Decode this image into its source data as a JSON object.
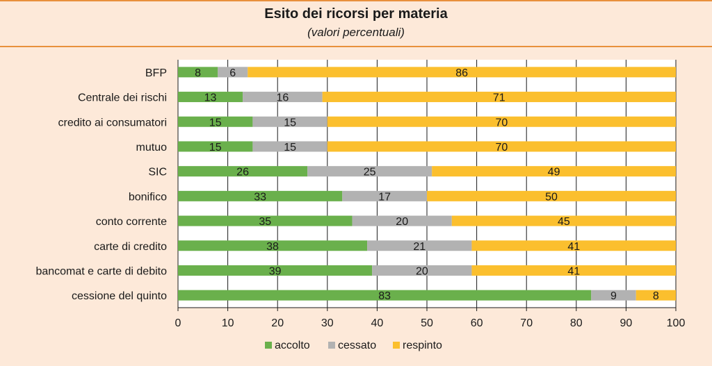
{
  "chart_data": {
    "type": "bar",
    "orientation": "horizontal",
    "stacked": true,
    "title": "Esito dei ricorsi per materia",
    "subtitle": "(valori percentuali)",
    "categories": [
      "BFP",
      "Centrale dei rischi",
      "credito ai consumatori",
      "mutuo",
      "SIC",
      "bonifico",
      "conto corrente",
      "carte di credito",
      "bancomat e carte di debito",
      "cessione del quinto"
    ],
    "series": [
      {
        "name": "accolto",
        "color": "#6ab04c",
        "values": [
          8,
          13,
          15,
          15,
          26,
          33,
          35,
          38,
          39,
          83
        ]
      },
      {
        "name": "cessato",
        "color": "#b2b2b2",
        "values": [
          6,
          16,
          15,
          15,
          25,
          17,
          20,
          21,
          20,
          9
        ]
      },
      {
        "name": "respinto",
        "color": "#fbbf2e",
        "values": [
          86,
          71,
          70,
          70,
          49,
          50,
          45,
          41,
          41,
          8
        ]
      }
    ],
    "xlim": [
      0,
      100
    ],
    "xticks": [
      0,
      10,
      20,
      30,
      40,
      50,
      60,
      70,
      80,
      90,
      100
    ],
    "grid": true,
    "legend": "bottom"
  }
}
